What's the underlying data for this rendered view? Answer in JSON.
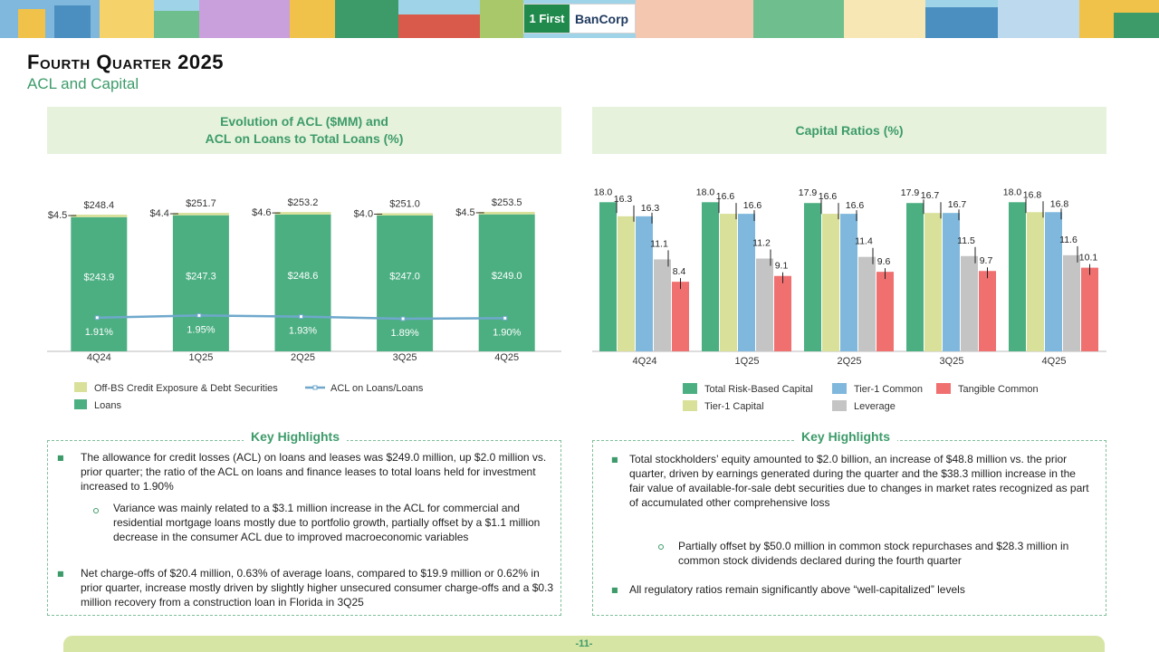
{
  "header": {
    "logo_one": "1 First",
    "logo_bancorp": "BanCorp",
    "title": "Fourth Quarter 2025",
    "subtitle": "ACL and Capital"
  },
  "acl_panel": {
    "title_line1": "Evolution of ACL ($MM) and",
    "title_line2": "ACL on Loans to Total Loans (%)"
  },
  "capital_panel": {
    "title": "Capital Ratios (%)"
  },
  "chart_data": [
    {
      "type": "bar",
      "title": "Evolution of ACL ($MM) and ACL on Loans to Total Loans (%)",
      "categories": [
        "4Q24",
        "1Q25",
        "2Q25",
        "3Q25",
        "4Q25"
      ],
      "series": [
        {
          "name": "Loans",
          "values": [
            243.9,
            247.3,
            248.6,
            247.0,
            249.0
          ],
          "labels": [
            "$243.9",
            "$247.3",
            "$248.6",
            "$247.0",
            "$249.0"
          ],
          "color": "#4caf82"
        },
        {
          "name": "Off-BS Credit Exposure & Debt Securities",
          "values": [
            4.5,
            4.4,
            4.6,
            4.0,
            4.5
          ],
          "labels": [
            "$4.5",
            "$4.4",
            "$4.6",
            "$4.0",
            "$4.5"
          ],
          "color": "#d9e09a"
        },
        {
          "name": "ACL on Loans/Loans",
          "values": [
            1.91,
            1.95,
            1.93,
            1.89,
            1.9
          ],
          "labels": [
            "1.91%",
            "1.95%",
            "1.93%",
            "1.89%",
            "1.90%"
          ],
          "color": "#6fa8cc"
        }
      ],
      "totals": [
        "$248.4",
        "$251.7",
        "$253.2",
        "$251.0",
        "$253.5"
      ],
      "ylim": [
        0,
        260
      ],
      "legend_position": "bottom"
    },
    {
      "type": "bar",
      "title": "Capital Ratios (%)",
      "categories": [
        "4Q24",
        "1Q25",
        "2Q25",
        "3Q25",
        "4Q25"
      ],
      "series": [
        {
          "name": "Total Risk-Based Capital",
          "values": [
            18.0,
            18.0,
            17.9,
            17.9,
            18.0
          ],
          "labels": [
            "18.0",
            "18.0",
            "17.9",
            "17.9",
            "18.0"
          ],
          "color": "#4caf82"
        },
        {
          "name": "Tier-1 Capital",
          "values": [
            16.3,
            16.6,
            16.6,
            16.7,
            16.8
          ],
          "labels": [
            "16.3",
            "16.6",
            "16.6",
            "16.7",
            "16.8"
          ],
          "color": "#d9e09a"
        },
        {
          "name": "Tier-1 Common",
          "values": [
            16.3,
            16.6,
            16.6,
            16.7,
            16.8
          ],
          "labels": [
            "16.3",
            "16.6",
            "16.6",
            "16.7",
            "16.8"
          ],
          "color": "#7fb8dc"
        },
        {
          "name": "Leverage",
          "values": [
            11.1,
            11.2,
            11.4,
            11.5,
            11.6
          ],
          "labels": [
            "11.1",
            "11.2",
            "11.4",
            "11.5",
            "11.6"
          ],
          "color": "#c4c4c4"
        },
        {
          "name": "Tangible Common",
          "values": [
            8.4,
            9.1,
            9.6,
            9.7,
            10.1
          ],
          "labels": [
            "8.4",
            "9.1",
            "9.6",
            "9.7",
            "10.1"
          ],
          "color": "#f07070"
        }
      ],
      "ylim": [
        0,
        20
      ],
      "legend_position": "bottom"
    }
  ],
  "left_highlights": {
    "title": "Key Highlights",
    "bullet1": "The allowance for credit losses (ACL) on loans and leases was $249.0 million, up $2.0 million vs. prior quarter; the ratio of the ACL on loans and finance leases to total loans held for investment increased to 1.90%",
    "sub1": "Variance was mainly related to a $3.1 million increase in the ACL for commercial and residential mortgage loans mostly due to portfolio growth, partially offset by a $1.1 million decrease in the consumer ACL due to improved macroeconomic variables",
    "bullet2": "Net charge-offs of $20.4 million, 0.63% of average loans, compared to $19.9 million or 0.62% in prior quarter, increase mostly driven by slightly higher unsecured consumer charge-offs and a $0.3 million recovery from a construction loan in Florida in 3Q25"
  },
  "right_highlights": {
    "title": "Key Highlights",
    "bullet1": "Total stockholders’ equity amounted to $2.0 billion, an increase of $48.8 million vs. the prior quarter, driven by earnings generated during the quarter and the $38.3 million increase in the fair value of available-for-sale debt securities due to changes in market rates recognized as part of accumulated other comprehensive loss",
    "sub1": "Partially offset by $50.0 million in common stock repurchases and $28.3 million in common stock dividends declared during the fourth quarter",
    "bullet2": "All regulatory ratios remain significantly above “well-capitalized” levels"
  },
  "footer": {
    "page": "-11-"
  }
}
